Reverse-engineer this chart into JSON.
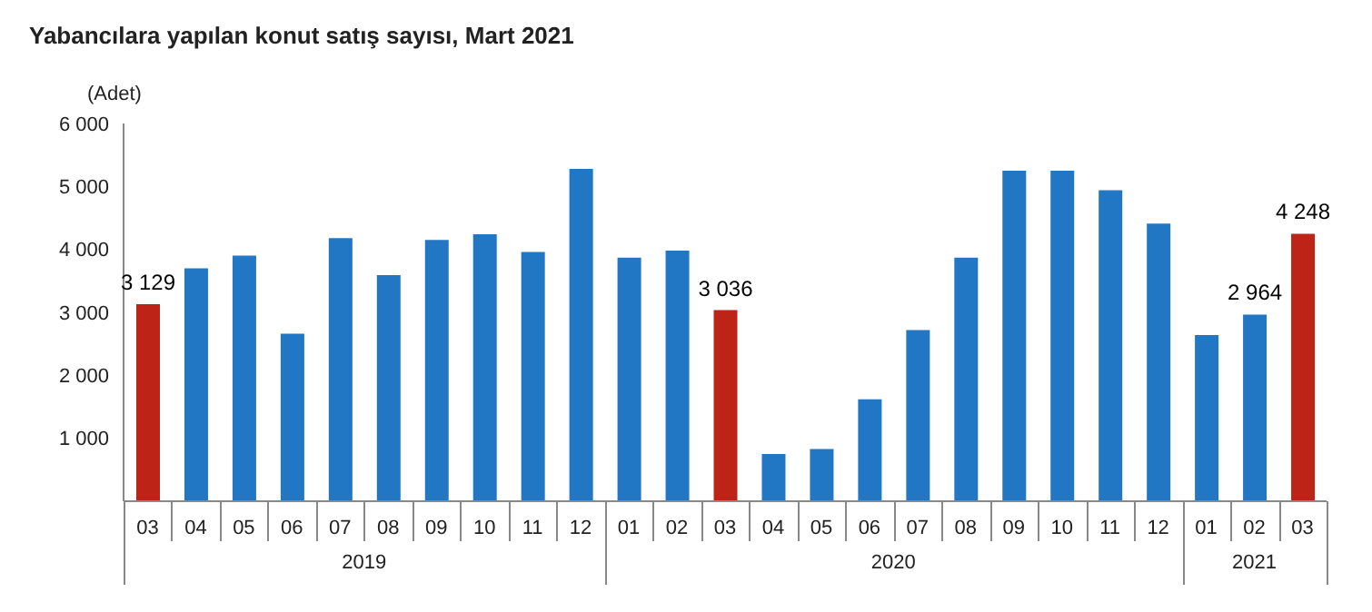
{
  "chart_data": {
    "type": "bar",
    "title": "Yabancılara yapılan konut satış sayısı, Mart 2021",
    "ylabel": "(Adet)",
    "categories": [
      "03",
      "04",
      "05",
      "06",
      "07",
      "08",
      "09",
      "10",
      "11",
      "12",
      "01",
      "02",
      "03",
      "04",
      "05",
      "06",
      "07",
      "08",
      "09",
      "10",
      "11",
      "12",
      "01",
      "02",
      "03"
    ],
    "values": [
      3129,
      3700,
      3900,
      2660,
      4180,
      3590,
      4150,
      4240,
      3960,
      5280,
      3870,
      3980,
      3036,
      750,
      830,
      1620,
      2720,
      3870,
      5250,
      5250,
      4940,
      4410,
      2640,
      2964,
      4248
    ],
    "colors": [
      "#be2317",
      "#2277c4",
      "#2277c4",
      "#2277c4",
      "#2277c4",
      "#2277c4",
      "#2277c4",
      "#2277c4",
      "#2277c4",
      "#2277c4",
      "#2277c4",
      "#2277c4",
      "#be2317",
      "#2277c4",
      "#2277c4",
      "#2277c4",
      "#2277c4",
      "#2277c4",
      "#2277c4",
      "#2277c4",
      "#2277c4",
      "#2277c4",
      "#2277c4",
      "#2277c4",
      "#be2317"
    ],
    "value_labels": [
      "3 129",
      null,
      null,
      null,
      null,
      null,
      null,
      null,
      null,
      null,
      null,
      null,
      "3 036",
      null,
      null,
      null,
      null,
      null,
      null,
      null,
      null,
      null,
      null,
      "2 964",
      "4 248"
    ],
    "annotations": [
      "2019",
      "2020",
      "2021"
    ],
    "ylim": [
      0,
      6000
    ],
    "yticks": [
      {
        "value": 0,
        "label": null
      },
      {
        "value": 1000,
        "label": "1 000"
      },
      {
        "value": 2000,
        "label": "2 000"
      },
      {
        "value": 3000,
        "label": "3 000"
      },
      {
        "value": 4000,
        "label": "4 000"
      },
      {
        "value": 5000,
        "label": "5 000"
      },
      {
        "value": 6000,
        "label": "6 000"
      }
    ],
    "grid": false,
    "legend": false
  }
}
